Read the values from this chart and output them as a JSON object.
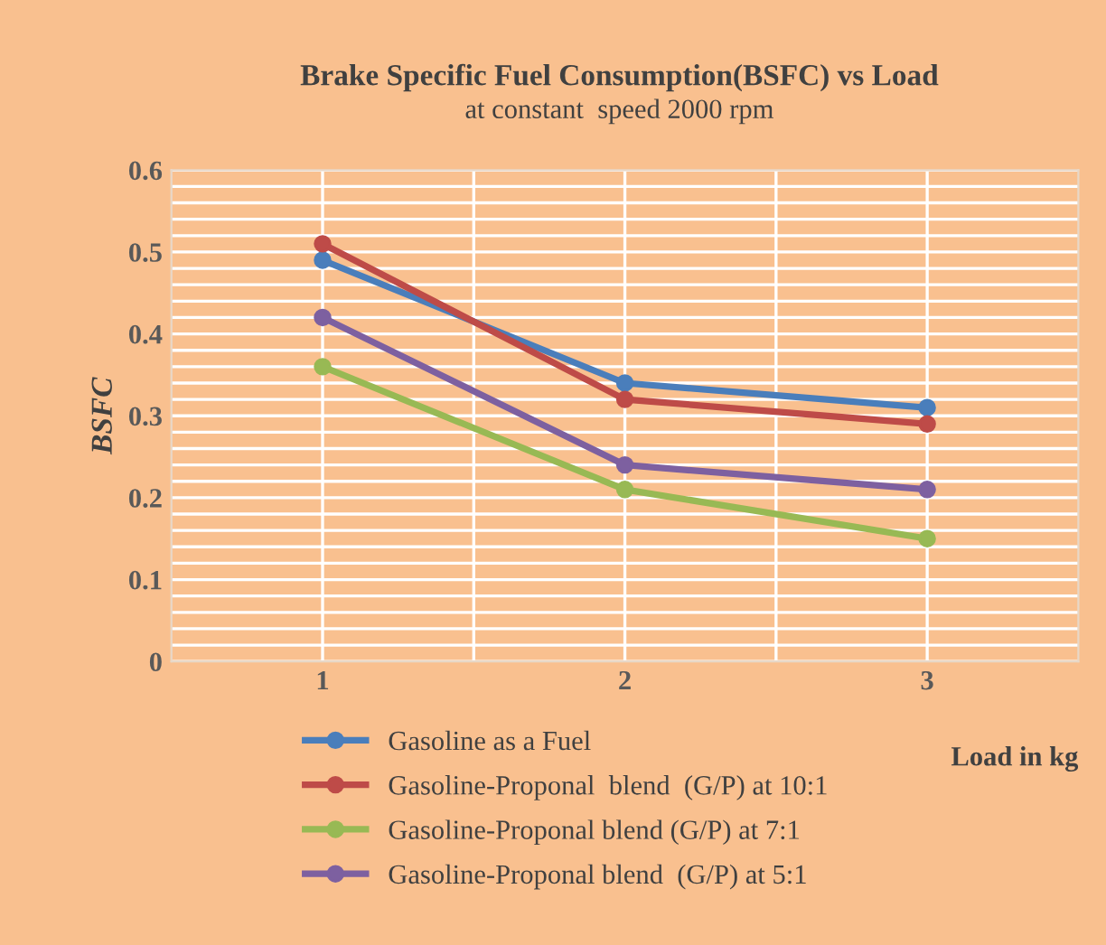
{
  "chart_data": {
    "type": "line",
    "title": "Brake Specific Fuel Consumption(BSFC) vs Load",
    "subtitle": "at constant  speed 2000 rpm",
    "xlabel": "Load in kg",
    "ylabel": "BSFC",
    "x": [
      1,
      2,
      3
    ],
    "xlim": [
      0.5,
      3.5
    ],
    "xticks": [
      1,
      {
        "value": 1.5,
        "label": null
      },
      2,
      {
        "value": 2.5,
        "label": null
      },
      3
    ],
    "ylim": [
      0,
      0.6
    ],
    "yticks": [
      0,
      {
        "value": 0.02,
        "label": null
      },
      {
        "value": 0.04,
        "label": null
      },
      {
        "value": 0.06,
        "label": null
      },
      {
        "value": 0.08,
        "label": null
      },
      0.1,
      {
        "value": 0.12,
        "label": null
      },
      {
        "value": 0.14,
        "label": null
      },
      {
        "value": 0.16,
        "label": null
      },
      {
        "value": 0.18,
        "label": null
      },
      0.2,
      {
        "value": 0.22,
        "label": null
      },
      {
        "value": 0.24,
        "label": null
      },
      {
        "value": 0.26,
        "label": null
      },
      {
        "value": 0.28,
        "label": null
      },
      0.3,
      {
        "value": 0.32,
        "label": null
      },
      {
        "value": 0.34,
        "label": null
      },
      {
        "value": 0.36,
        "label": null
      },
      {
        "value": 0.38,
        "label": null
      },
      0.4,
      {
        "value": 0.42,
        "label": null
      },
      {
        "value": 0.44,
        "label": null
      },
      {
        "value": 0.46,
        "label": null
      },
      {
        "value": 0.48,
        "label": null
      },
      0.5,
      {
        "value": 0.52,
        "label": null
      },
      {
        "value": 0.54,
        "label": null
      },
      {
        "value": 0.56,
        "label": null
      },
      {
        "value": 0.58,
        "label": null
      },
      0.6
    ],
    "grid": true,
    "legend": "bottom",
    "marker": "circle",
    "line_style": "solid",
    "series": [
      {
        "name": "Gasoline as a Fuel",
        "color": "#4a7ebb",
        "values": [
          0.49,
          0.34,
          0.31
        ]
      },
      {
        "name": "Gasoline-Proponal  blend  (G/P) at 10:1",
        "color": "#be4b48",
        "values": [
          0.51,
          0.32,
          0.29
        ]
      },
      {
        "name": "Gasoline-Proponal blend (G/P) at 7:1",
        "color": "#98b954",
        "values": [
          0.36,
          0.21,
          0.15
        ]
      },
      {
        "name": "Gasoline-Proponal blend  (G/P) at 5:1",
        "color": "#7d60a0",
        "values": [
          0.42,
          0.24,
          0.21
        ]
      }
    ]
  }
}
